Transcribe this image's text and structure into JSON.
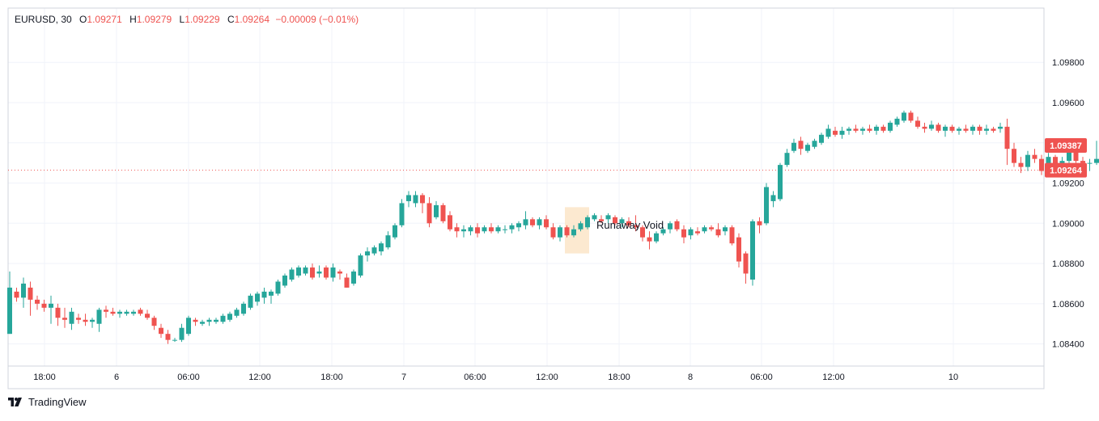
{
  "legend": {
    "symbol": "EURUSD",
    "interval": "30",
    "open_label": "O",
    "open": "1.09271",
    "high_label": "H",
    "high": "1.09279",
    "low_label": "L",
    "low": "1.09229",
    "close_label": "C",
    "close": "1.09264",
    "change": "−0.00009 (−0.01%)"
  },
  "brand": {
    "name": "TradingView"
  },
  "colors": {
    "up": "#26a69a",
    "down": "#ef5350",
    "grid": "#f0f3fa",
    "axis": "#d1d4dc",
    "highlight": "#fbe3c4"
  },
  "chart_data": {
    "type": "candlestick",
    "title": "",
    "xlabel": "",
    "ylabel": "",
    "grid": true,
    "ylim": [
      1.0829,
      1.1007
    ],
    "yticks": [
      "1.08400",
      "1.08600",
      "1.08800",
      "1.09000",
      "1.09200",
      "1.09400",
      "1.09600",
      "1.09800"
    ],
    "xticks": [
      "18:00",
      "6",
      "06:00",
      "12:00",
      "18:00",
      "7",
      "06:00",
      "12:00",
      "18:00",
      "8",
      "06:00",
      "12:00",
      "10"
    ],
    "price_tags": [
      {
        "value": 1.09387,
        "label": "1.09387"
      },
      {
        "value": 1.09264,
        "label": "1.09264"
      }
    ],
    "annotation": {
      "text": "Runaway Void",
      "price_low": 1.0885,
      "price_high": 1.0908
    },
    "ohlc": [
      [
        1.0845,
        1.0876,
        1.0845,
        1.0868
      ],
      [
        1.0866,
        1.0868,
        1.0861,
        1.0863
      ],
      [
        1.0863,
        1.0873,
        1.0858,
        1.087
      ],
      [
        1.0868,
        1.0871,
        1.0854,
        1.0862
      ],
      [
        1.0862,
        1.0864,
        1.0857,
        1.086
      ],
      [
        1.086,
        1.0862,
        1.0856,
        1.0858
      ],
      [
        1.0858,
        1.0864,
        1.085,
        1.086
      ],
      [
        1.0858,
        1.086,
        1.0849,
        1.0853
      ],
      [
        1.0853,
        1.0858,
        1.0848,
        1.0852
      ],
      [
        1.085,
        1.0858,
        1.0847,
        1.0856
      ],
      [
        1.0853,
        1.0855,
        1.085,
        1.0852
      ],
      [
        1.0852,
        1.0855,
        1.0849,
        1.0851
      ],
      [
        1.0851,
        1.0853,
        1.0848,
        1.0852
      ],
      [
        1.085,
        1.0858,
        1.0846,
        1.0857
      ],
      [
        1.0857,
        1.0859,
        1.0853,
        1.0856
      ],
      [
        1.0856,
        1.0858,
        1.0854,
        1.0855
      ],
      [
        1.0855,
        1.0857,
        1.0853,
        1.0856
      ],
      [
        1.0855,
        1.0857,
        1.0854,
        1.0856
      ],
      [
        1.0855,
        1.0857,
        1.0854,
        1.0856
      ],
      [
        1.0857,
        1.0858,
        1.0854,
        1.0855
      ],
      [
        1.0855,
        1.0857,
        1.0852,
        1.0853
      ],
      [
        1.0853,
        1.0854,
        1.0847,
        1.0849
      ],
      [
        1.0848,
        1.085,
        1.0843,
        1.0845
      ],
      [
        1.0845,
        1.0847,
        1.084,
        1.0842
      ],
      [
        1.0842,
        1.0843,
        1.0841,
        1.0842
      ],
      [
        1.0842,
        1.085,
        1.0841,
        1.0848
      ],
      [
        1.0845,
        1.0854,
        1.0844,
        1.0853
      ],
      [
        1.0852,
        1.0853,
        1.0849,
        1.0851
      ],
      [
        1.085,
        1.0852,
        1.0849,
        1.0851
      ],
      [
        1.0851,
        1.0853,
        1.0849,
        1.0852
      ],
      [
        1.0851,
        1.0853,
        1.085,
        1.0852
      ],
      [
        1.0851,
        1.0855,
        1.085,
        1.0854
      ],
      [
        1.0852,
        1.0856,
        1.0851,
        1.0855
      ],
      [
        1.0854,
        1.0858,
        1.0853,
        1.0857
      ],
      [
        1.0855,
        1.0861,
        1.0854,
        1.086
      ],
      [
        1.0858,
        1.0865,
        1.0857,
        1.0864
      ],
      [
        1.0861,
        1.0866,
        1.0859,
        1.0865
      ],
      [
        1.0863,
        1.0868,
        1.086,
        1.0866
      ],
      [
        1.0864,
        1.0867,
        1.086,
        1.0866
      ],
      [
        1.0865,
        1.0872,
        1.0864,
        1.0871
      ],
      [
        1.0869,
        1.0875,
        1.0868,
        1.0874
      ],
      [
        1.0872,
        1.0878,
        1.0871,
        1.0877
      ],
      [
        1.0874,
        1.0879,
        1.0873,
        1.0878
      ],
      [
        1.0875,
        1.0879,
        1.0874,
        1.0878
      ],
      [
        1.0878,
        1.088,
        1.0872,
        1.0873
      ],
      [
        1.0875,
        1.0879,
        1.0873,
        1.0876
      ],
      [
        1.0878,
        1.0879,
        1.0872,
        1.0873
      ],
      [
        1.0873,
        1.088,
        1.0871,
        1.0878
      ],
      [
        1.0876,
        1.0877,
        1.0872,
        1.0875
      ],
      [
        1.0873,
        1.0875,
        1.0868,
        1.0868
      ],
      [
        1.087,
        1.0877,
        1.0869,
        1.0876
      ],
      [
        1.0874,
        1.0885,
        1.0873,
        1.0884
      ],
      [
        1.0884,
        1.0888,
        1.0881,
        1.0886
      ],
      [
        1.0885,
        1.0889,
        1.0884,
        1.0888
      ],
      [
        1.0886,
        1.0891,
        1.0884,
        1.089
      ],
      [
        1.0888,
        1.0896,
        1.0887,
        1.0894
      ],
      [
        1.0893,
        1.09,
        1.0892,
        1.0899
      ],
      [
        1.0899,
        1.0912,
        1.0898,
        1.091
      ],
      [
        1.0911,
        1.0916,
        1.0908,
        1.0914
      ],
      [
        1.091,
        1.0916,
        1.0908,
        1.0914
      ],
      [
        1.0914,
        1.0915,
        1.0905,
        1.091
      ],
      [
        1.091,
        1.0913,
        1.0898,
        1.09
      ],
      [
        1.0903,
        1.0911,
        1.0902,
        1.0909
      ],
      [
        1.0909,
        1.091,
        1.09,
        1.0901
      ],
      [
        1.0904,
        1.0906,
        1.0896,
        1.0897
      ],
      [
        1.0898,
        1.09,
        1.0893,
        1.0896
      ],
      [
        1.0896,
        1.0899,
        1.0893,
        1.0897
      ],
      [
        1.0896,
        1.0899,
        1.0894,
        1.0898
      ],
      [
        1.0898,
        1.09,
        1.0893,
        1.0895
      ],
      [
        1.0896,
        1.0899,
        1.0895,
        1.0898
      ],
      [
        1.0898,
        1.09,
        1.0895,
        1.0896
      ],
      [
        1.0896,
        1.0899,
        1.0895,
        1.0898
      ],
      [
        1.0897,
        1.0899,
        1.0895,
        1.0897
      ],
      [
        1.0897,
        1.09,
        1.0895,
        1.0899
      ],
      [
        1.0898,
        1.0901,
        1.0896,
        1.09
      ],
      [
        1.0899,
        1.0906,
        1.0897,
        1.0902
      ],
      [
        1.0902,
        1.0903,
        1.0898,
        1.0899
      ],
      [
        1.0899,
        1.0903,
        1.0897,
        1.0902
      ],
      [
        1.0902,
        1.0904,
        1.0897,
        1.0898
      ],
      [
        1.0898,
        1.09,
        1.0892,
        1.0893
      ],
      [
        1.0893,
        1.0899,
        1.0891,
        1.0898
      ],
      [
        1.0898,
        1.0899,
        1.0893,
        1.0894
      ],
      [
        1.0894,
        1.0899,
        1.0893,
        1.0897
      ],
      [
        1.0897,
        1.0901,
        1.0896,
        1.09
      ],
      [
        1.0898,
        1.0904,
        1.0897,
        1.0903
      ],
      [
        1.0902,
        1.0905,
        1.0901,
        1.0904
      ],
      [
        1.0902,
        1.0904,
        1.09,
        1.0901
      ],
      [
        1.0902,
        1.0905,
        1.09,
        1.0904
      ],
      [
        1.0903,
        1.0904,
        1.0899,
        1.09
      ],
      [
        1.09,
        1.0903,
        1.0898,
        1.0902
      ],
      [
        1.0901,
        1.0903,
        1.0898,
        1.0899
      ],
      [
        1.0899,
        1.0904,
        1.0896,
        1.0898
      ],
      [
        1.0898,
        1.0899,
        1.0891,
        1.0893
      ],
      [
        1.0893,
        1.0896,
        1.0887,
        1.0891
      ],
      [
        1.0891,
        1.0896,
        1.089,
        1.0895
      ],
      [
        1.0895,
        1.0898,
        1.0894,
        1.0897
      ],
      [
        1.0897,
        1.0901,
        1.0895,
        1.09
      ],
      [
        1.0901,
        1.0902,
        1.0896,
        1.0897
      ],
      [
        1.0897,
        1.0899,
        1.089,
        1.0893
      ],
      [
        1.0894,
        1.0898,
        1.0892,
        1.0897
      ],
      [
        1.0896,
        1.0898,
        1.0894,
        1.0895
      ],
      [
        1.0896,
        1.0899,
        1.0895,
        1.0898
      ],
      [
        1.0898,
        1.0899,
        1.0896,
        1.0897
      ],
      [
        1.0897,
        1.09,
        1.0893,
        1.0894
      ],
      [
        1.0896,
        1.0899,
        1.0894,
        1.0898
      ],
      [
        1.0898,
        1.0899,
        1.0889,
        1.089
      ],
      [
        1.0893,
        1.0895,
        1.0878,
        1.0881
      ],
      [
        1.0885,
        1.0886,
        1.087,
        1.0875
      ],
      [
        1.0872,
        1.0902,
        1.0869,
        1.0901
      ],
      [
        1.0901,
        1.0903,
        1.0895,
        1.0899
      ],
      [
        1.09,
        1.092,
        1.0899,
        1.0918
      ],
      [
        1.0911,
        1.0916,
        1.0908,
        1.0914
      ],
      [
        1.0912,
        1.093,
        1.0911,
        1.0929
      ],
      [
        1.0929,
        1.0937,
        1.0928,
        1.0935
      ],
      [
        1.0936,
        1.0942,
        1.0935,
        1.094
      ],
      [
        1.0941,
        1.0943,
        1.0934,
        1.0937
      ],
      [
        1.0936,
        1.094,
        1.0935,
        1.0939
      ],
      [
        1.0938,
        1.0942,
        1.0937,
        1.0941
      ],
      [
        1.094,
        1.0945,
        1.0939,
        1.0944
      ],
      [
        1.0943,
        1.0949,
        1.0942,
        1.0947
      ],
      [
        1.0946,
        1.0948,
        1.0943,
        1.0944
      ],
      [
        1.0944,
        1.0948,
        1.0942,
        1.0946
      ],
      [
        1.0946,
        1.0948,
        1.0944,
        1.0947
      ],
      [
        1.0947,
        1.0949,
        1.0945,
        1.0946
      ],
      [
        1.0946,
        1.0948,
        1.0944,
        1.0947
      ],
      [
        1.0947,
        1.0949,
        1.0945,
        1.0946
      ],
      [
        1.0946,
        1.0949,
        1.0944,
        1.0948
      ],
      [
        1.0948,
        1.0949,
        1.0945,
        1.0946
      ],
      [
        1.0946,
        1.0951,
        1.0945,
        1.095
      ],
      [
        1.0949,
        1.0953,
        1.0948,
        1.0952
      ],
      [
        1.0951,
        1.0956,
        1.095,
        1.0955
      ],
      [
        1.0955,
        1.0956,
        1.095,
        1.0951
      ],
      [
        1.0951,
        1.0953,
        1.0947,
        1.0948
      ],
      [
        1.0948,
        1.095,
        1.0945,
        1.0947
      ],
      [
        1.0947,
        1.0951,
        1.0946,
        1.0949
      ],
      [
        1.0949,
        1.095,
        1.0945,
        1.0946
      ],
      [
        1.0946,
        1.0949,
        1.0943,
        1.0948
      ],
      [
        1.0948,
        1.0949,
        1.0945,
        1.0946
      ],
      [
        1.0946,
        1.0948,
        1.0944,
        1.0947
      ],
      [
        1.0947,
        1.0949,
        1.0945,
        1.0946
      ],
      [
        1.0946,
        1.0949,
        1.0944,
        1.0948
      ],
      [
        1.0948,
        1.0949,
        1.0944,
        1.0946
      ],
      [
        1.0946,
        1.0949,
        1.0944,
        1.0947
      ],
      [
        1.0947,
        1.0948,
        1.0945,
        1.0946
      ],
      [
        1.0947,
        1.095,
        1.0945,
        1.0948
      ],
      [
        1.0948,
        1.0952,
        1.0929,
        1.0937
      ],
      [
        1.0937,
        1.094,
        1.0928,
        1.093
      ],
      [
        1.093,
        1.0933,
        1.0925,
        1.0928
      ],
      [
        1.0928,
        1.0936,
        1.0926,
        1.0934
      ],
      [
        1.0934,
        1.0937,
        1.093,
        1.0932
      ],
      [
        1.0932,
        1.0934,
        1.0924,
        1.0926
      ],
      [
        1.0926,
        1.0935,
        1.0924,
        1.0933
      ],
      [
        1.0933,
        1.0934,
        1.0925,
        1.0928
      ],
      [
        1.0928,
        1.0933,
        1.0924,
        1.0931
      ],
      [
        1.0931,
        1.0937,
        1.0929,
        1.0936
      ],
      [
        1.0936,
        1.0937,
        1.093,
        1.0931
      ],
      [
        1.0931,
        1.0933,
        1.0926,
        1.093
      ],
      [
        1.093,
        1.0932,
        1.0926,
        1.093
      ],
      [
        1.093,
        1.0941,
        1.0929,
        1.0932
      ],
      [
        1.093,
        1.0948,
        1.0919,
        1.0946
      ],
      [
        1.0946,
        1.0981,
        1.0944,
        1.0961
      ],
      [
        1.0961,
        1.0966,
        1.0951,
        1.0958
      ],
      [
        1.0958,
        1.0963,
        1.0949,
        1.0954
      ],
      [
        1.0957,
        1.0961,
        1.0948,
        1.0959
      ],
      [
        1.0961,
        1.0962,
        1.0941,
        1.0944
      ],
      [
        1.0961,
        1.0962,
        1.0943,
        1.0946
      ],
      [
        1.0946,
        1.0948,
        1.0938,
        1.0941
      ],
      [
        1.0941,
        1.0945,
        1.0939,
        1.0944
      ],
      [
        1.0944,
        1.0946,
        1.0937,
        1.0938
      ],
      [
        1.0938,
        1.094,
        1.0933,
        1.0935
      ],
      [
        1.0935,
        1.0938,
        1.0934,
        1.0937
      ],
      [
        1.0937,
        1.094,
        1.0935,
        1.0939
      ],
      [
        1.0939,
        1.0942,
        1.0937,
        1.0941
      ],
      [
        1.0941,
        1.0944,
        1.0934,
        1.0936
      ],
      [
        1.0936,
        1.0938,
        1.0934,
        1.0936
      ],
      [
        1.0936,
        1.0938,
        1.0934,
        1.0935
      ],
      [
        1.0935,
        1.0941,
        1.0934,
        1.094
      ],
      [
        1.094,
        1.0942,
        1.0936,
        1.0938
      ],
      [
        1.0938,
        1.0939,
        1.0936,
        1.0937
      ],
      [
        1.0937,
        1.0939,
        1.0935,
        1.0938
      ],
      [
        1.0938,
        1.094,
        1.0936,
        1.0937
      ],
      [
        1.0937,
        1.0942,
        1.0936,
        1.0941
      ],
      [
        1.0941,
        1.0944,
        1.0939,
        1.0942
      ],
      [
        1.0942,
        1.0945,
        1.094,
        1.0943
      ],
      [
        1.0942,
        1.0947,
        1.0941,
        1.0943
      ],
      [
        1.0943,
        1.0946,
        1.094,
        1.0941
      ],
      [
        1.0941,
        1.0944,
        1.0938,
        1.0942
      ],
      [
        1.0942,
        1.0943,
        1.0938,
        1.094
      ],
      [
        1.094,
        1.0941,
        1.0937,
        1.0938
      ],
      [
        1.0938,
        1.0944,
        1.0937,
        1.0943
      ],
      [
        1.0943,
        1.0944,
        1.094,
        1.0942
      ],
      [
        1.0942,
        1.0943,
        1.0938,
        1.0939
      ]
    ]
  }
}
